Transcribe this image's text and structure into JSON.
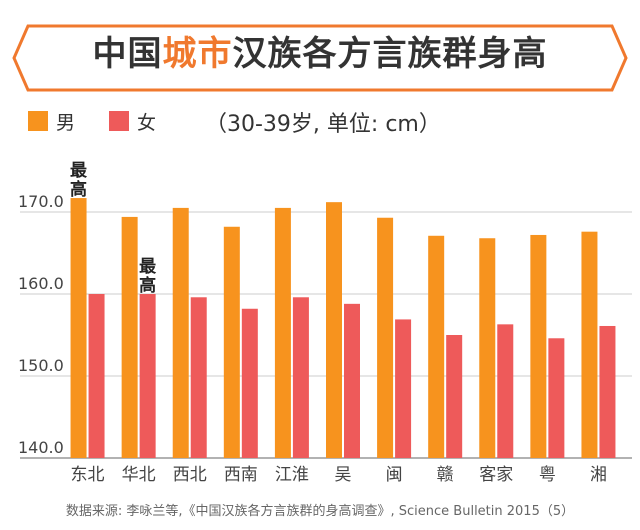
{
  "header": {
    "title_part1": "中国",
    "title_highlight": "城市",
    "title_part2": "汉族各方言族群身高",
    "accent_color": "#f0792e"
  },
  "legend": {
    "items": [
      {
        "label": "男",
        "color": "#f7931e"
      },
      {
        "label": "女",
        "color": "#ee5a5a"
      }
    ],
    "unit_note": "（30-39岁, 单位: cm）"
  },
  "chart_data": {
    "type": "bar",
    "title": "中国城市汉族各方言族群身高",
    "xlabel": "",
    "ylabel": "",
    "unit": "cm",
    "ylim": [
      140,
      175
    ],
    "yticks": [
      140,
      150,
      160,
      170
    ],
    "ytick_labels": [
      "140.0",
      "150.0",
      "160.0",
      "170.0"
    ],
    "categories": [
      "东北",
      "华北",
      "西北",
      "西南",
      "江淮",
      "吴",
      "闽",
      "赣",
      "客家",
      "粤",
      "湘"
    ],
    "series": [
      {
        "name": "男",
        "color": "#f7931e",
        "values": [
          171.7,
          169.4,
          170.5,
          168.2,
          170.5,
          171.2,
          169.3,
          167.1,
          166.8,
          167.2,
          167.6
        ]
      },
      {
        "name": "女",
        "color": "#ee5a5a",
        "values": [
          160.0,
          160.0,
          159.6,
          158.2,
          159.6,
          158.8,
          156.9,
          155.0,
          156.3,
          154.6,
          156.1
        ]
      }
    ],
    "annotations": [
      {
        "text": "最高",
        "category": "东北",
        "series": "男"
      },
      {
        "text": "最高",
        "category": "华北",
        "series": "女"
      }
    ]
  },
  "footer": {
    "source": "数据来源: 李咏兰等,《中国汉族各方言族群的身高调查》, Science Bulletin 2015（5）"
  }
}
